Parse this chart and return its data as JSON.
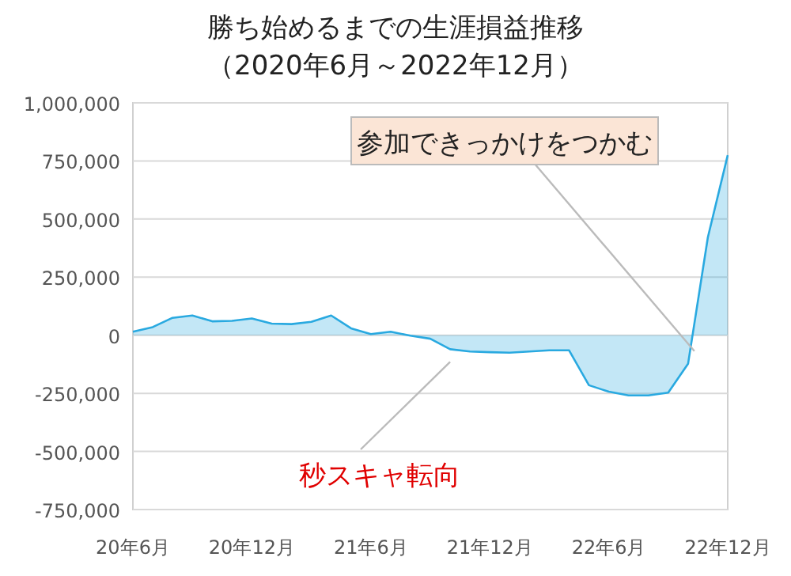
{
  "chart_data": {
    "type": "area",
    "title": "勝ち始めるまでの生涯損益推移",
    "subtitle": "（2020年6月～2022年12月）",
    "x": [
      "2020-06",
      "2020-07",
      "2020-08",
      "2020-09",
      "2020-10",
      "2020-11",
      "2020-12",
      "2021-01",
      "2021-02",
      "2021-03",
      "2021-04",
      "2021-05",
      "2021-06",
      "2021-07",
      "2021-08",
      "2021-09",
      "2021-10",
      "2021-11",
      "2021-12",
      "2022-01",
      "2022-02",
      "2022-03",
      "2022-04",
      "2022-05",
      "2022-06",
      "2022-07",
      "2022-08",
      "2022-09",
      "2022-10",
      "2022-11",
      "2022-12"
    ],
    "series": [
      {
        "color": "#29a9e0",
        "values": [
          15000,
          35000,
          75000,
          85000,
          60000,
          62000,
          72000,
          50000,
          48000,
          58000,
          85000,
          30000,
          5000,
          15000,
          -2000,
          -15000,
          -60000,
          -70000,
          -73000,
          -75000,
          -70000,
          -65000,
          -65000,
          -215000,
          -243000,
          -259000,
          -259000,
          -247000,
          -123000,
          422000,
          775000
        ]
      }
    ],
    "xlim": [
      "2020-06",
      "2022-12"
    ],
    "xticks": [
      {
        "value": "2020-06",
        "label": "20年6月"
      },
      {
        "value": "2020-12",
        "label": "20年12月"
      },
      {
        "value": "2021-06",
        "label": "21年6月"
      },
      {
        "value": "2021-12",
        "label": "21年12月"
      },
      {
        "value": "2022-06",
        "label": "22年6月"
      },
      {
        "value": "2022-12",
        "label": "22年12月"
      }
    ],
    "ylim": [
      -750000,
      1000000
    ],
    "yticks": [
      {
        "value": 1000000,
        "label": "1,000,000"
      },
      {
        "value": 750000,
        "label": "750,000"
      },
      {
        "value": 500000,
        "label": "500,000"
      },
      {
        "value": 250000,
        "label": "250,000"
      },
      0,
      {
        "value": -250000,
        "label": "-250,000"
      },
      {
        "value": -500000,
        "label": "-500,000"
      },
      {
        "value": -750000,
        "label": "-750,000"
      }
    ],
    "grid": "y",
    "annotations": [
      {
        "text": "参加できっかけをつかむ",
        "x": "2022-10",
        "y": -123000
      },
      {
        "text": "秒スキャ転向",
        "x": "2021-10",
        "y": -60000
      }
    ]
  }
}
